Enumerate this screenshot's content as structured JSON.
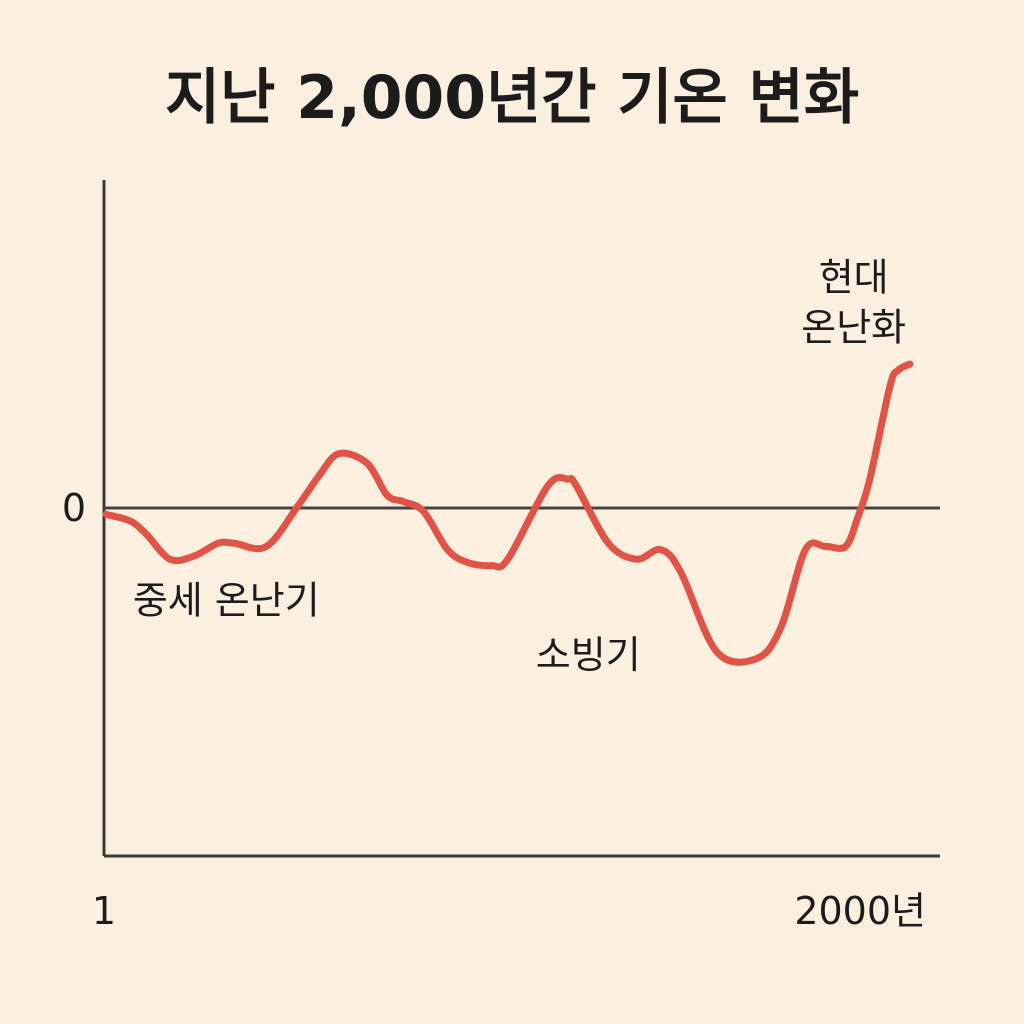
{
  "chart_data": {
    "type": "line",
    "title": "지난 2,000년간 기온 변화",
    "xlabel": "",
    "ylabel": "",
    "x_ticks": [
      {
        "value": 1,
        "label": "1"
      },
      {
        "value": 2000,
        "label": "2000년"
      }
    ],
    "y_ticks": [
      {
        "value": 0,
        "label": "0"
      }
    ],
    "xlim": [
      1,
      2000
    ],
    "ylim": [
      -1.0,
      1.0
    ],
    "grid": false,
    "legend": "none",
    "colors": {
      "line": "#e05448",
      "background": "#fbf0e0",
      "axis": "#3a3a3a"
    },
    "series": [
      {
        "x": [
          1,
          60,
          100,
          160,
          220,
          280,
          320,
          400,
          480,
          530,
          580,
          650,
          700,
          740,
          790,
          850,
          900,
          960,
          1000,
          1100,
          1150,
          1170,
          1250,
          1320,
          1380,
          1430,
          1520,
          1620,
          1680,
          1740,
          1790,
          1840,
          1870,
          1900,
          1950,
          1970,
          2000
        ],
        "y": [
          -0.02,
          -0.04,
          -0.08,
          -0.16,
          -0.15,
          -0.11,
          -0.11,
          -0.12,
          0.01,
          0.1,
          0.17,
          0.14,
          0.04,
          0.02,
          -0.01,
          -0.13,
          -0.17,
          -0.18,
          -0.16,
          0.07,
          0.09,
          0.07,
          -0.11,
          -0.16,
          -0.13,
          -0.2,
          -0.45,
          -0.47,
          -0.37,
          -0.13,
          -0.12,
          -0.12,
          -0.03,
          0.09,
          0.38,
          0.43,
          0.45
        ]
      }
    ],
    "annotations": [
      {
        "lines": [
          "중세 온난기"
        ],
        "x": 300,
        "y": -0.33
      },
      {
        "lines": [
          "소빙기"
        ],
        "x": 1200,
        "y": -0.5
      },
      {
        "lines": [
          "현대",
          "온난화"
        ],
        "x": 1860,
        "y": 0.68
      }
    ]
  }
}
